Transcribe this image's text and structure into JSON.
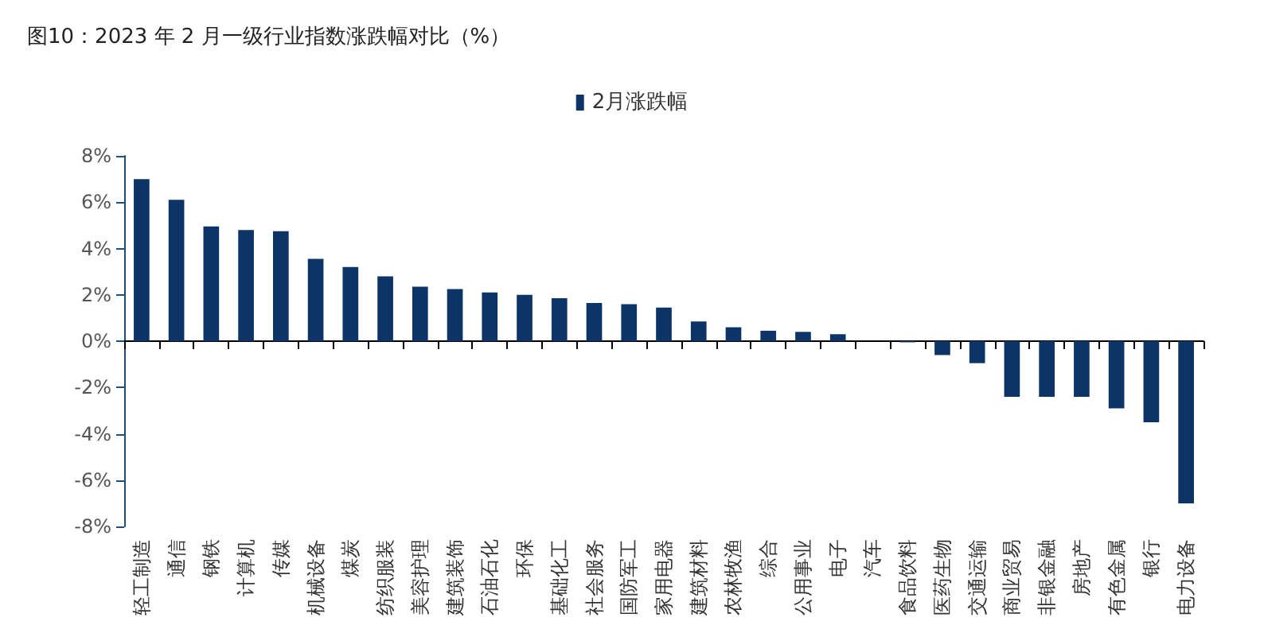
{
  "chart_data": {
    "type": "bar",
    "title": "图10：2023 年 2 月一级行业指数涨跌幅对比（%）",
    "categories": [
      "轻工制造",
      "通信",
      "钢铁",
      "计算机",
      "传媒",
      "机械设备",
      "煤炭",
      "纺织服装",
      "美容护理",
      "建筑装饰",
      "石油石化",
      "环保",
      "基础化工",
      "社会服务",
      "国防军工",
      "家用电器",
      "建筑材料",
      "农林牧渔",
      "综合",
      "公用事业",
      "电子",
      "汽车",
      "食品饮料",
      "医药生物",
      "交通运输",
      "商业贸易",
      "非银金融",
      "房地产",
      "有色金属",
      "银行",
      "电力设备"
    ],
    "series": [
      {
        "name": "2月涨跌幅",
        "color": "#0c3466",
        "values": [
          7.0,
          6.1,
          4.95,
          4.8,
          4.75,
          3.55,
          3.2,
          2.8,
          2.35,
          2.25,
          2.1,
          2.0,
          1.85,
          1.65,
          1.6,
          1.45,
          0.85,
          0.6,
          0.45,
          0.4,
          0.3,
          0.0,
          -0.05,
          -0.6,
          -0.95,
          -2.4,
          -2.4,
          -2.4,
          -2.9,
          -3.5,
          -7.0
        ]
      }
    ],
    "ylim": [
      -8,
      8
    ],
    "yticks": [
      {
        "value": -8,
        "label": "-8%"
      },
      {
        "value": -6,
        "label": "-6%"
      },
      {
        "value": -4,
        "label": "-4%"
      },
      {
        "value": -2,
        "label": "-2%"
      },
      {
        "value": 0,
        "label": "0%"
      },
      {
        "value": 2,
        "label": "2%"
      },
      {
        "value": 4,
        "label": "4%"
      },
      {
        "value": 6,
        "label": "6%"
      },
      {
        "value": 8,
        "label": "8%"
      }
    ],
    "legend": "top"
  }
}
